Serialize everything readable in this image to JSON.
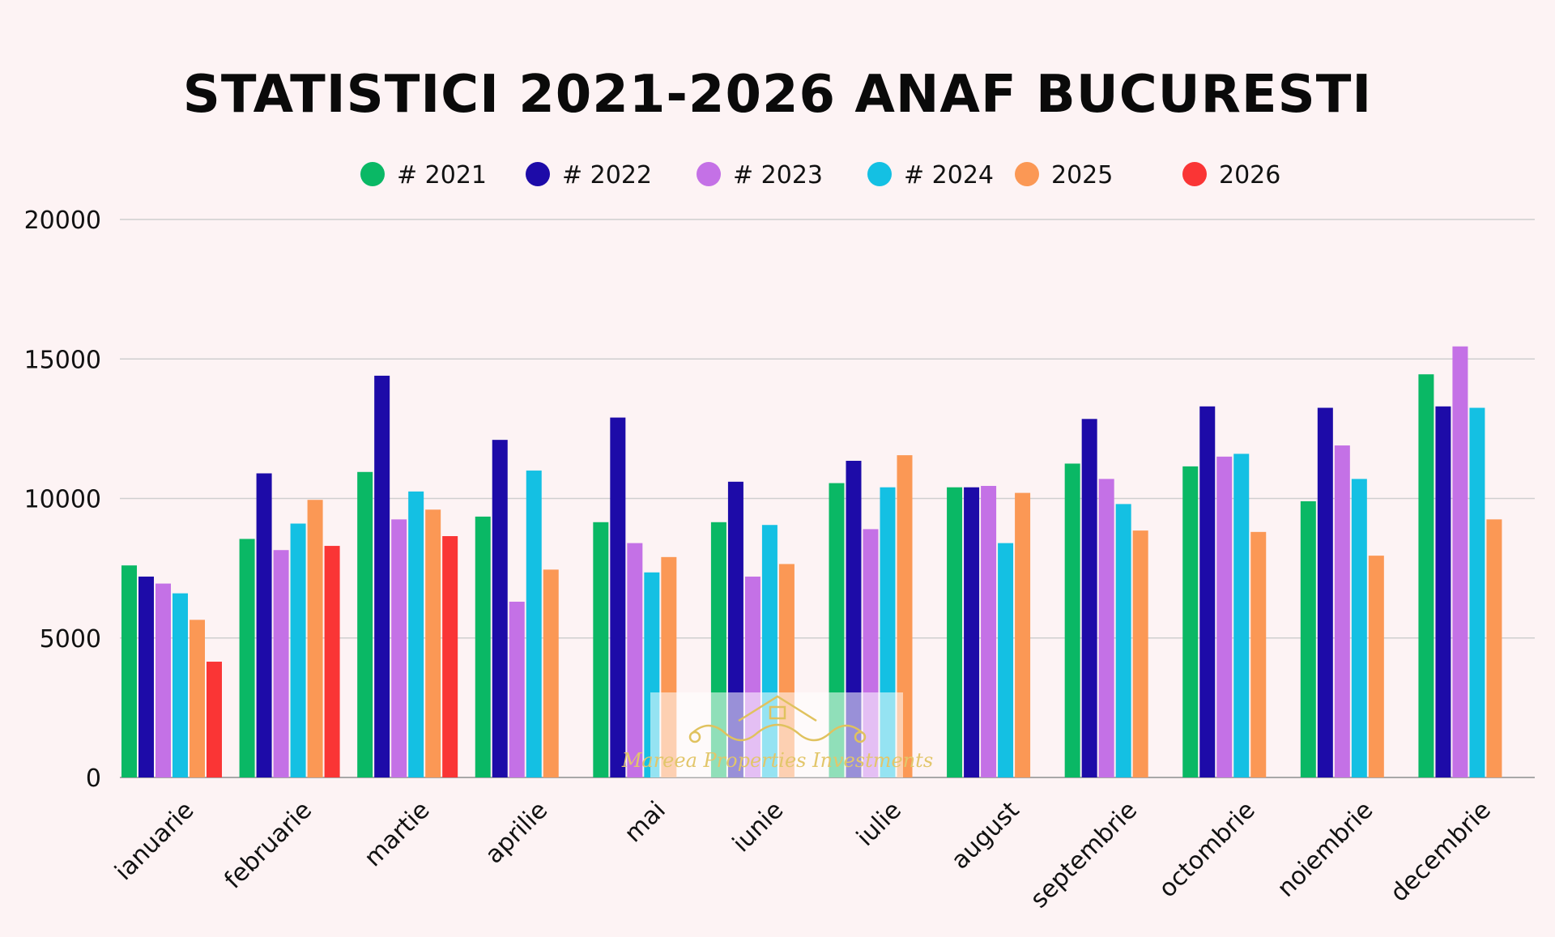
{
  "chart_data": {
    "type": "bar",
    "title": "STATISTICI 2021-2026 ANAF BUCURESTI",
    "xlabel": "",
    "ylabel": "",
    "ylim": [
      0,
      20000
    ],
    "yticks": [
      "0",
      "5000",
      "10000",
      "15000",
      "20000"
    ],
    "grid": true,
    "legend_position": "top",
    "categories": [
      "ianuarie",
      "februarie",
      "martie",
      "aprilie",
      "mai",
      "iunie",
      "iulie",
      "august",
      "septembrie",
      "octombrie",
      "noiembrie",
      "decembrie"
    ],
    "series": [
      {
        "name": "# 2021",
        "color": "#0ab865",
        "values": [
          7600,
          8550,
          10950,
          9350,
          9150,
          9150,
          10550,
          10400,
          11250,
          11150,
          9900,
          14450
        ]
      },
      {
        "name": "# 2022",
        "color": "#1d0ba8",
        "values": [
          7200,
          10900,
          14400,
          12100,
          12900,
          10600,
          11350,
          10400,
          12850,
          13300,
          13250,
          13300
        ]
      },
      {
        "name": "# 2023",
        "color": "#c471e6",
        "values": [
          6950,
          8150,
          9250,
          6300,
          8400,
          7200,
          8900,
          10450,
          10700,
          11500,
          11900,
          15450
        ]
      },
      {
        "name": "# 2024",
        "color": "#14c0e3",
        "values": [
          6600,
          9100,
          10250,
          11000,
          7350,
          9050,
          10400,
          8400,
          9800,
          11600,
          10700,
          13250
        ]
      },
      {
        "name": "2025",
        "color": "#fb9855",
        "values": [
          5650,
          9950,
          9600,
          7450,
          7900,
          7650,
          11550,
          10200,
          8850,
          8800,
          7950,
          9250
        ]
      },
      {
        "name": "2026",
        "color": "#fa3535",
        "values": [
          4150,
          8300,
          8650,
          null,
          null,
          null,
          null,
          null,
          null,
          null,
          null,
          null
        ]
      }
    ]
  },
  "watermark": {
    "text": "Mareea Properties Investments",
    "logo": "house-emblem-icon"
  }
}
